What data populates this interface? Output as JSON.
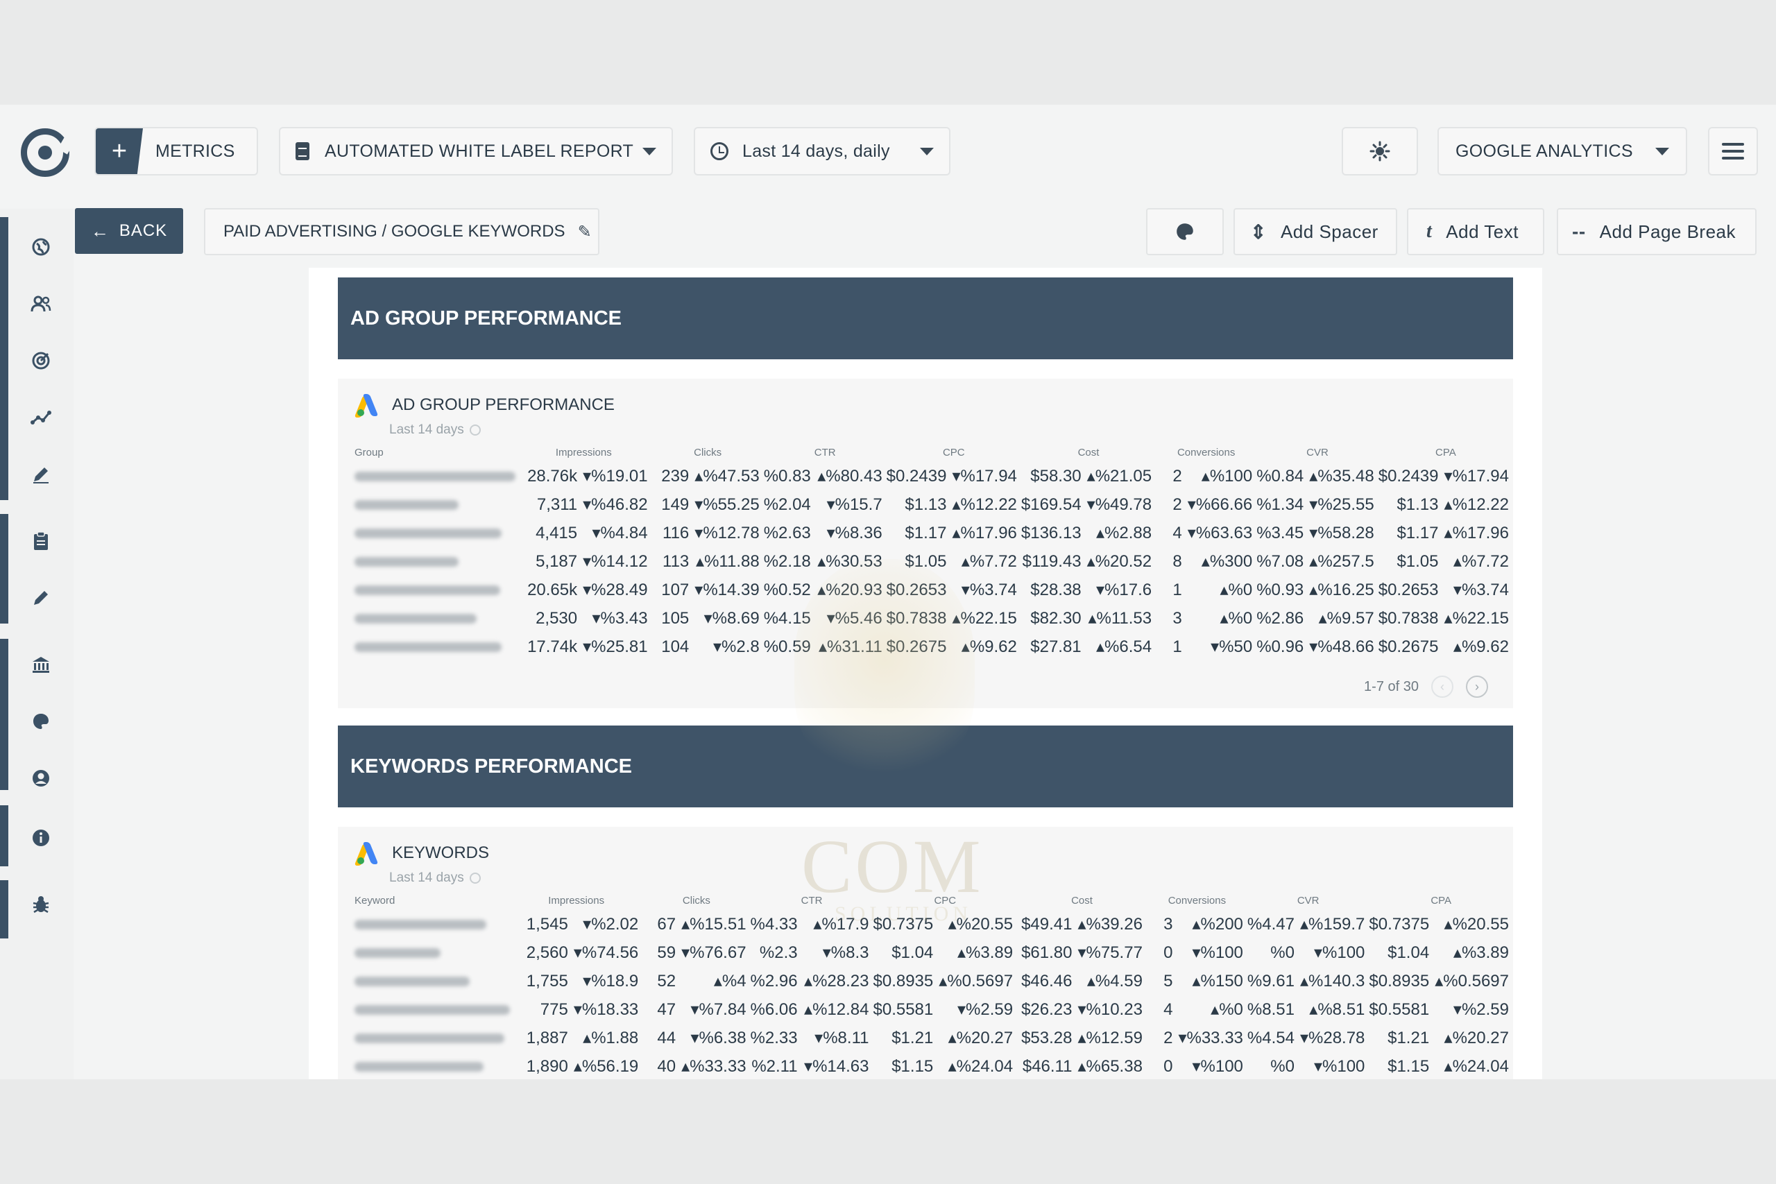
{
  "topbar": {
    "metrics_label": "METRICS",
    "report_name": "AUTOMATED WHITE LABEL REPORT",
    "date_range": "Last 14 days, daily",
    "source": "GOOGLE ANALYTICS"
  },
  "toolbar": {
    "back_label": "BACK",
    "section_path": "PAID ADVERTISING / GOOGLE KEYWORDS",
    "add_spacer": "Add Spacer",
    "add_text": "Add Text",
    "add_page_break": "Add Page Break"
  },
  "sidebar": {
    "icons": [
      "globe-icon",
      "users-icon",
      "target-icon",
      "analytics-icon",
      "edit-icon",
      "clipboard-icon",
      "brush-icon",
      "bank-icon",
      "palette-icon",
      "account-icon",
      "info-icon",
      "bug-icon"
    ]
  },
  "report": {
    "section1_title": "AD GROUP PERFORMANCE",
    "section2_title": "KEYWORDS PERFORMANCE",
    "adgroup": {
      "title": "AD GROUP PERFORMANCE",
      "subtitle": "Last 14 days",
      "columns": [
        "Group",
        "Impressions",
        "Clicks",
        "CTR",
        "CPC",
        "Cost",
        "Conversions",
        "CVR",
        "CPA"
      ],
      "pagination": "1-7 of 30",
      "rows": [
        {
          "impr": "28.76k",
          "impr_chg": "▾%19.01",
          "impr_dir": "down",
          "clicks": "239",
          "clicks_chg": "▴%47.53",
          "clicks_dir": "up",
          "ctr": "%0.83",
          "ctr_chg": "▴%80.43",
          "ctr_dir": "up",
          "cpc": "$0.2439",
          "cpc_chg": "▾%17.94",
          "cpc_dir": "up",
          "cost": "$58.30",
          "cost_chg": "▴%21.05",
          "cost_dir": "up",
          "conv": "2",
          "conv_chg": "▴%100",
          "conv_dir": "up",
          "cvr": "%0.84",
          "cvr_chg": "▴%35.48",
          "cvr_dir": "up",
          "cpa": "$0.2439",
          "cpa_chg": "▾%17.94",
          "cpa_dir": "up"
        },
        {
          "impr": "7,311",
          "impr_chg": "▾%46.82",
          "impr_dir": "down",
          "clicks": "149",
          "clicks_chg": "▾%55.25",
          "clicks_dir": "down",
          "ctr": "%2.04",
          "ctr_chg": "▾%15.7",
          "ctr_dir": "down",
          "cpc": "$1.13",
          "cpc_chg": "▴%12.22",
          "cpc_dir": "down",
          "cost": "$169.54",
          "cost_chg": "▾%49.78",
          "cost_dir": "down",
          "conv": "2",
          "conv_chg": "▾%66.66",
          "conv_dir": "down",
          "cvr": "%1.34",
          "cvr_chg": "▾%25.55",
          "cvr_dir": "down",
          "cpa": "$1.13",
          "cpa_chg": "▴%12.22",
          "cpa_dir": "down"
        },
        {
          "impr": "4,415",
          "impr_chg": "▾%4.84",
          "impr_dir": "down",
          "clicks": "116",
          "clicks_chg": "▾%12.78",
          "clicks_dir": "down",
          "ctr": "%2.63",
          "ctr_chg": "▾%8.36",
          "ctr_dir": "down",
          "cpc": "$1.17",
          "cpc_chg": "▴%17.96",
          "cpc_dir": "down",
          "cost": "$136.13",
          "cost_chg": "▴%2.88",
          "cost_dir": "up",
          "conv": "4",
          "conv_chg": "▾%63.63",
          "conv_dir": "down",
          "cvr": "%3.45",
          "cvr_chg": "▾%58.28",
          "cvr_dir": "down",
          "cpa": "$1.17",
          "cpa_chg": "▴%17.96",
          "cpa_dir": "down"
        },
        {
          "impr": "5,187",
          "impr_chg": "▾%14.12",
          "impr_dir": "down",
          "clicks": "113",
          "clicks_chg": "▴%11.88",
          "clicks_dir": "up",
          "ctr": "%2.18",
          "ctr_chg": "▴%30.53",
          "ctr_dir": "up",
          "cpc": "$1.05",
          "cpc_chg": "▴%7.72",
          "cpc_dir": "down",
          "cost": "$119.43",
          "cost_chg": "▴%20.52",
          "cost_dir": "up",
          "conv": "8",
          "conv_chg": "▴%300",
          "conv_dir": "up",
          "cvr": "%7.08",
          "cvr_chg": "▴%257.5",
          "cvr_dir": "up",
          "cpa": "$1.05",
          "cpa_chg": "▴%7.72",
          "cpa_dir": "down"
        },
        {
          "impr": "20.65k",
          "impr_chg": "▾%28.49",
          "impr_dir": "down",
          "clicks": "107",
          "clicks_chg": "▾%14.39",
          "clicks_dir": "down",
          "ctr": "%0.52",
          "ctr_chg": "▴%20.93",
          "ctr_dir": "up",
          "cpc": "$0.2653",
          "cpc_chg": "▾%3.74",
          "cpc_dir": "up",
          "cost": "$28.38",
          "cost_chg": "▾%17.6",
          "cost_dir": "down",
          "conv": "1",
          "conv_chg": "▴%0",
          "conv_dir": "up",
          "cvr": "%0.93",
          "cvr_chg": "▴%16.25",
          "cvr_dir": "up",
          "cpa": "$0.2653",
          "cpa_chg": "▾%3.74",
          "cpa_dir": "up"
        },
        {
          "impr": "2,530",
          "impr_chg": "▾%3.43",
          "impr_dir": "down",
          "clicks": "105",
          "clicks_chg": "▾%8.69",
          "clicks_dir": "down",
          "ctr": "%4.15",
          "ctr_chg": "▾%5.46",
          "ctr_dir": "down",
          "cpc": "$0.7838",
          "cpc_chg": "▴%22.15",
          "cpc_dir": "down",
          "cost": "$82.30",
          "cost_chg": "▴%11.53",
          "cost_dir": "up",
          "conv": "3",
          "conv_chg": "▴%0",
          "conv_dir": "up",
          "cvr": "%2.86",
          "cvr_chg": "▴%9.57",
          "cvr_dir": "up",
          "cpa": "$0.7838",
          "cpa_chg": "▴%22.15",
          "cpa_dir": "down"
        },
        {
          "impr": "17.74k",
          "impr_chg": "▾%25.81",
          "impr_dir": "down",
          "clicks": "104",
          "clicks_chg": "▾%2.8",
          "clicks_dir": "down",
          "ctr": "%0.59",
          "ctr_chg": "▴%31.11",
          "ctr_dir": "up",
          "cpc": "$0.2675",
          "cpc_chg": "▴%9.62",
          "cpc_dir": "down",
          "cost": "$27.81",
          "cost_chg": "▴%6.54",
          "cost_dir": "up",
          "conv": "1",
          "conv_chg": "▾%50",
          "conv_dir": "down",
          "cvr": "%0.96",
          "cvr_chg": "▾%48.66",
          "cvr_dir": "down",
          "cpa": "$0.2675",
          "cpa_chg": "▴%9.62",
          "cpa_dir": "down"
        }
      ]
    },
    "keywords": {
      "title": "KEYWORDS",
      "subtitle": "Last 14 days",
      "columns": [
        "Keyword",
        "Impressions",
        "Clicks",
        "CTR",
        "CPC",
        "Cost",
        "Conversions",
        "CVR",
        "CPA"
      ],
      "rows": [
        {
          "impr": "1,545",
          "impr_chg": "▾%2.02",
          "impr_dir": "down",
          "clicks": "67",
          "clicks_chg": "▴%15.51",
          "clicks_dir": "up",
          "ctr": "%4.33",
          "ctr_chg": "▴%17.9",
          "ctr_dir": "up",
          "cpc": "$0.7375",
          "cpc_chg": "▴%20.55",
          "cpc_dir": "down",
          "cost": "$49.41",
          "cost_chg": "▴%39.26",
          "cost_dir": "up",
          "conv": "3",
          "conv_chg": "▴%200",
          "conv_dir": "up",
          "cvr": "%4.47",
          "cvr_chg": "▴%159.7",
          "cvr_dir": "up",
          "cpa": "$0.7375",
          "cpa_chg": "▴%20.55",
          "cpa_dir": "down"
        },
        {
          "impr": "2,560",
          "impr_chg": "▾%74.56",
          "impr_dir": "down",
          "clicks": "59",
          "clicks_chg": "▾%76.67",
          "clicks_dir": "down",
          "ctr": "%2.3",
          "ctr_chg": "▾%8.3",
          "ctr_dir": "down",
          "cpc": "$1.04",
          "cpc_chg": "▴%3.89",
          "cpc_dir": "down",
          "cost": "$61.80",
          "cost_chg": "▾%75.77",
          "cost_dir": "down",
          "conv": "0",
          "conv_chg": "▾%100",
          "conv_dir": "down",
          "cvr": "%0",
          "cvr_chg": "▾%100",
          "cvr_dir": "down",
          "cpa": "$1.04",
          "cpa_chg": "▴%3.89",
          "cpa_dir": "down"
        },
        {
          "impr": "1,755",
          "impr_chg": "▾%18.9",
          "impr_dir": "down",
          "clicks": "52",
          "clicks_chg": "▴%4",
          "clicks_dir": "up",
          "ctr": "%2.96",
          "ctr_chg": "▴%28.23",
          "ctr_dir": "up",
          "cpc": "$0.8935",
          "cpc_chg": "▴%0.5697",
          "cpc_dir": "down",
          "cost": "$46.46",
          "cost_chg": "▴%4.59",
          "cost_dir": "up",
          "conv": "5",
          "conv_chg": "▴%150",
          "conv_dir": "up",
          "cvr": "%9.61",
          "cvr_chg": "▴%140.3",
          "cvr_dir": "up",
          "cpa": "$0.8935",
          "cpa_chg": "▴%0.5697",
          "cpa_dir": "down"
        },
        {
          "impr": "775",
          "impr_chg": "▾%18.33",
          "impr_dir": "down",
          "clicks": "47",
          "clicks_chg": "▾%7.84",
          "clicks_dir": "down",
          "ctr": "%6.06",
          "ctr_chg": "▴%12.84",
          "ctr_dir": "up",
          "cpc": "$0.5581",
          "cpc_chg": "▾%2.59",
          "cpc_dir": "up",
          "cost": "$26.23",
          "cost_chg": "▾%10.23",
          "cost_dir": "down",
          "conv": "4",
          "conv_chg": "▴%0",
          "conv_dir": "up",
          "cvr": "%8.51",
          "cvr_chg": "▴%8.51",
          "cvr_dir": "up",
          "cpa": "$0.5581",
          "cpa_chg": "▾%2.59",
          "cpa_dir": "up"
        },
        {
          "impr": "1,887",
          "impr_chg": "▴%1.88",
          "impr_dir": "up",
          "clicks": "44",
          "clicks_chg": "▾%6.38",
          "clicks_dir": "down",
          "ctr": "%2.33",
          "ctr_chg": "▾%8.11",
          "ctr_dir": "down",
          "cpc": "$1.21",
          "cpc_chg": "▴%20.27",
          "cpc_dir": "down",
          "cost": "$53.28",
          "cost_chg": "▴%12.59",
          "cost_dir": "up",
          "conv": "2",
          "conv_chg": "▾%33.33",
          "conv_dir": "down",
          "cvr": "%4.54",
          "cvr_chg": "▾%28.78",
          "cvr_dir": "down",
          "cpa": "$1.21",
          "cpa_chg": "▴%20.27",
          "cpa_dir": "down"
        },
        {
          "impr": "1,890",
          "impr_chg": "▴%56.19",
          "impr_dir": "up",
          "clicks": "40",
          "clicks_chg": "▴%33.33",
          "clicks_dir": "up",
          "ctr": "%2.11",
          "ctr_chg": "▾%14.63",
          "ctr_dir": "down",
          "cpc": "$1.15",
          "cpc_chg": "▴%24.04",
          "cpc_dir": "down",
          "cost": "$46.11",
          "cost_chg": "▴%65.38",
          "cost_dir": "up",
          "conv": "0",
          "conv_chg": "▾%100",
          "conv_dir": "down",
          "cvr": "%0",
          "cvr_chg": "▾%100",
          "cvr_dir": "down",
          "cpa": "$1.15",
          "cpa_chg": "▴%24.04",
          "cpa_dir": "down"
        }
      ]
    }
  },
  "watermark": {
    "text": "COM",
    "subtext": "SOLUTION"
  },
  "colors": {
    "primary": "#3b5165",
    "band": "#3f5468",
    "up": "#22c08a",
    "down": "#e0545a",
    "fab": "#e0271c"
  }
}
